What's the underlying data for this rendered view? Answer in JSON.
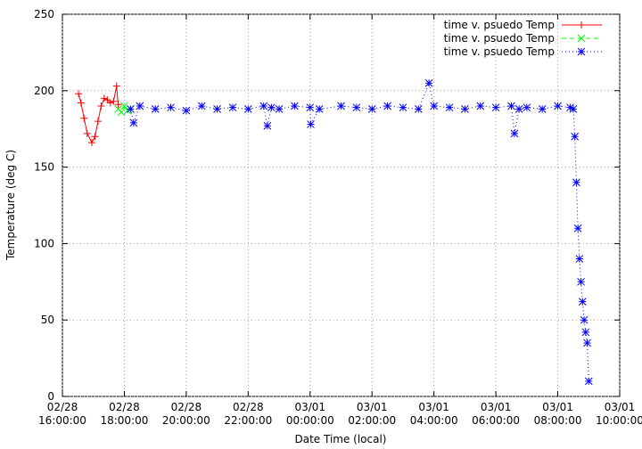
{
  "chart_data": {
    "type": "line",
    "xlabel": "Date Time (local)",
    "ylabel": "Temperature (deg C)",
    "xlim": [
      16,
      34
    ],
    "xticks": [
      {
        "value": 16,
        "label": [
          "02/28",
          "16:00:00"
        ]
      },
      {
        "value": 18,
        "label": [
          "02/28",
          "18:00:00"
        ]
      },
      {
        "value": 20,
        "label": [
          "02/28",
          "20:00:00"
        ]
      },
      {
        "value": 22,
        "label": [
          "02/28",
          "22:00:00"
        ]
      },
      {
        "value": 24,
        "label": [
          "03/01",
          "00:00:00"
        ]
      },
      {
        "value": 26,
        "label": [
          "03/01",
          "02:00:00"
        ]
      },
      {
        "value": 28,
        "label": [
          "03/01",
          "04:00:00"
        ]
      },
      {
        "value": 30,
        "label": [
          "03/01",
          "06:00:00"
        ]
      },
      {
        "value": 32,
        "label": [
          "03/01",
          "08:00:00"
        ]
      },
      {
        "value": 34,
        "label": [
          "03/01",
          "10:00:00"
        ]
      }
    ],
    "ylim": [
      0,
      250
    ],
    "yticks": [
      0,
      50,
      100,
      150,
      200,
      250
    ],
    "grid": true,
    "legend": "top-right",
    "series": [
      {
        "name": "time v. psuedo Temp",
        "color": "#ff0000",
        "marker": "+",
        "dash": "solid",
        "x": [
          16.52,
          16.6,
          16.7,
          16.8,
          16.95,
          17.05,
          17.15,
          17.25,
          17.35,
          17.45,
          17.55,
          17.65,
          17.75,
          17.8
        ],
        "values": [
          198,
          192,
          182,
          172,
          166,
          170,
          180,
          190,
          195,
          194,
          192,
          193,
          203,
          191
        ]
      },
      {
        "name": "time v. psuedo Temp",
        "color": "#00ff00",
        "marker": "x",
        "dash": "dashed",
        "x": [
          17.8,
          17.9,
          18.0,
          18.1,
          18.2
        ],
        "values": [
          188,
          186,
          190,
          187,
          188
        ]
      },
      {
        "name": "time v. psuedo Temp",
        "color": "#0000ff",
        "marker": "*",
        "dash": "dotted",
        "x": [
          18.2,
          18.3,
          18.5,
          19,
          19.5,
          20,
          20.5,
          21,
          21.5,
          22,
          22.5,
          22.62,
          22.75,
          23,
          23.5,
          24,
          24.02,
          24.3,
          25,
          25.5,
          26,
          26.5,
          27,
          27.5,
          27.84,
          28,
          28.5,
          29,
          29.5,
          30,
          30.5,
          30.6,
          30.75,
          31,
          31.5,
          32,
          32.4,
          32.5,
          32.55,
          32.6,
          32.65,
          32.7,
          32.75,
          32.8,
          32.85,
          32.9,
          32.95,
          33.0
        ],
        "values": [
          188,
          179,
          190,
          188,
          189,
          187,
          190,
          188,
          189,
          188,
          190,
          177,
          189,
          188,
          190,
          189,
          178,
          188,
          190,
          189,
          188,
          190,
          189,
          188,
          205,
          190,
          189,
          188,
          190,
          189,
          190,
          172,
          188,
          189,
          188,
          190,
          189,
          188,
          170,
          140,
          110,
          90,
          75,
          62,
          50,
          42,
          35,
          10
        ]
      }
    ]
  }
}
